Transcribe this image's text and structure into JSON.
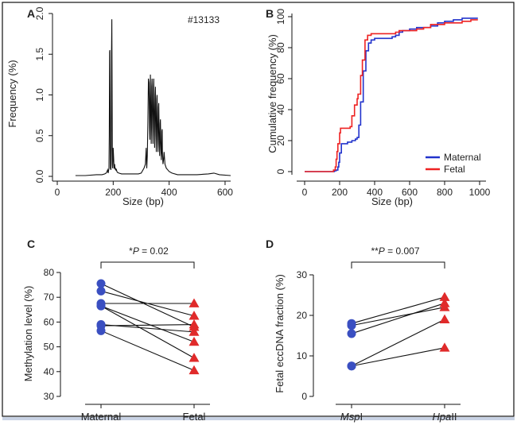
{
  "chart_data": [
    {
      "panel": "A",
      "type": "line",
      "annotation": "#13133",
      "xlabel": "Size (bp)",
      "ylabel": "Frequency (%)",
      "xlim": [
        0,
        620
      ],
      "ylim": [
        0,
        2.0
      ],
      "xticks": [
        "0",
        "200",
        "400",
        "600"
      ],
      "yticks": [
        "0.0",
        "0.5",
        "1.0",
        "1.5",
        "2.0"
      ],
      "series": [
        {
          "name": "Frequency",
          "color": "#111111",
          "x": [
            65,
            100,
            140,
            160,
            170,
            175,
            178,
            180,
            182,
            185,
            186,
            187,
            188,
            189,
            190,
            192,
            193,
            194,
            195,
            196,
            197,
            198,
            199,
            200,
            202,
            203,
            204,
            205,
            206,
            208,
            209,
            210,
            211,
            213,
            215,
            220,
            230,
            250,
            270,
            290,
            300,
            310,
            315,
            318,
            320,
            322,
            324,
            326,
            328,
            330,
            331,
            332,
            333,
            334,
            336,
            337,
            338,
            339,
            340,
            342,
            343,
            344,
            345,
            346,
            348,
            349,
            350,
            351,
            352,
            354,
            355,
            356,
            357,
            358,
            360,
            361,
            362,
            363,
            364,
            366,
            367,
            368,
            369,
            370,
            372,
            373,
            374,
            375,
            376,
            378,
            380,
            382,
            385,
            390,
            395,
            400,
            410,
            430,
            460,
            500,
            540,
            560,
            580,
            620
          ],
          "y": [
            0.01,
            0.01,
            0.02,
            0.02,
            0.03,
            0.04,
            0.06,
            0.08,
            0.04,
            0.1,
            0.5,
            1.53,
            1.55,
            0.8,
            0.1,
            0.08,
            0.4,
            1.5,
            1.93,
            1.2,
            0.15,
            0.1,
            0.2,
            0.35,
            0.2,
            0.1,
            0.1,
            0.15,
            0.12,
            0.08,
            0.1,
            0.07,
            0.09,
            0.06,
            0.05,
            0.04,
            0.03,
            0.03,
            0.03,
            0.03,
            0.04,
            0.1,
            0.15,
            0.35,
            0.1,
            0.25,
            0.65,
            1.2,
            1.15,
            0.6,
            0.45,
            0.9,
            1.25,
            1.0,
            0.4,
            0.6,
            1.1,
            1.2,
            0.95,
            0.4,
            0.55,
            1.1,
            1.2,
            0.9,
            0.35,
            0.5,
            1.0,
            1.1,
            0.8,
            0.3,
            0.45,
            0.95,
            1.0,
            0.7,
            0.3,
            0.4,
            0.85,
            0.9,
            0.6,
            0.25,
            0.35,
            0.65,
            0.7,
            0.45,
            0.2,
            0.3,
            0.55,
            0.58,
            0.3,
            0.15,
            0.2,
            0.3,
            0.15,
            0.1,
            0.08,
            0.06,
            0.04,
            0.02,
            0.02,
            0.02,
            0.03,
            0.04,
            0.02,
            0.01
          ]
        }
      ]
    },
    {
      "panel": "B",
      "type": "line",
      "xlabel": "Size (bp)",
      "ylabel": "Cumulative frequency (%)",
      "xlim": [
        -50,
        1030
      ],
      "ylim": [
        -5,
        102
      ],
      "xticks": [
        "0",
        "200",
        "400",
        "600",
        "800",
        "1000"
      ],
      "yticks": [
        "0",
        "20",
        "40",
        "60",
        "80",
        "100"
      ],
      "legend_position": "bottom-right",
      "series": [
        {
          "name": "Maternal",
          "color": "#2233cc",
          "x": [
            0,
            150,
            170,
            180,
            190,
            195,
            200,
            210,
            225,
            245,
            260,
            270,
            280,
            290,
            300,
            310,
            320,
            335,
            350,
            365,
            380,
            400,
            420,
            440,
            460,
            480,
            500,
            520,
            540,
            560,
            580,
            600,
            640,
            680,
            720,
            760,
            800,
            850,
            900,
            950,
            990
          ],
          "y": [
            0,
            0,
            0.5,
            1,
            3,
            6,
            12,
            18,
            18,
            19,
            19,
            20,
            20,
            21,
            22,
            30,
            45,
            65,
            78,
            83,
            85,
            86,
            86,
            86,
            86,
            86,
            87,
            88,
            90,
            91,
            91,
            92,
            93,
            93,
            94,
            96,
            97,
            98,
            99,
            99,
            99
          ]
        },
        {
          "name": "Fetal",
          "color": "#ee2222",
          "x": [
            0,
            150,
            165,
            175,
            180,
            185,
            190,
            200,
            205,
            240,
            260,
            270,
            285,
            300,
            305,
            320,
            330,
            345,
            360,
            380,
            400,
            440,
            470,
            500,
            520,
            540,
            560,
            600,
            640,
            680,
            720,
            760,
            800,
            820,
            850,
            900,
            950,
            990
          ],
          "y": [
            0,
            0,
            1,
            3,
            8,
            13,
            18,
            25,
            28,
            28,
            29,
            36,
            43,
            47,
            50,
            62,
            72,
            85,
            88,
            89,
            89,
            89,
            89,
            89,
            90,
            91,
            91,
            91,
            92,
            93,
            95,
            95,
            96,
            96,
            96,
            97,
            98,
            98
          ]
        }
      ]
    },
    {
      "panel": "C",
      "type": "scatter",
      "title": "*P = 0.02",
      "p_prefix": "*",
      "p_italic": "P",
      "p_value": " = 0.02",
      "xlabel": "",
      "ylabel": "Methylation level (%)",
      "categories": [
        "Maternal",
        "Fetal"
      ],
      "ylim": [
        30,
        80
      ],
      "yticks": [
        "30",
        "40",
        "50",
        "60",
        "70",
        "80"
      ],
      "pairs": [
        [
          75.5,
          58
        ],
        [
          72.5,
          62.5
        ],
        [
          67.5,
          67.5
        ],
        [
          66.5,
          45.5
        ],
        [
          59,
          56
        ],
        [
          58.5,
          59
        ],
        [
          56.5,
          40.5
        ],
        [
          66.5,
          52
        ]
      ],
      "series": [
        {
          "name": "Maternal",
          "color": "#3a4fc1",
          "marker": "circle"
        },
        {
          "name": "Fetal",
          "color": "#e02a2a",
          "marker": "triangle"
        }
      ]
    },
    {
      "panel": "D",
      "type": "scatter",
      "title": "**P = 0.007",
      "p_prefix": "**",
      "p_italic": "P",
      "p_value": " = 0.007",
      "xlabel": "",
      "ylabel": "Fetal eccDNA fraction (%)",
      "categories": [
        "MspI",
        "HpaII"
      ],
      "category_parts": [
        {
          "italic": "Msp",
          "roman": "I"
        },
        {
          "italic": "Hpa",
          "roman": "II"
        }
      ],
      "ylim": [
        0,
        30
      ],
      "yticks": [
        "0",
        "10",
        "20",
        "30"
      ],
      "pairs": [
        [
          18,
          24.5
        ],
        [
          17.5,
          22
        ],
        [
          15.5,
          23
        ],
        [
          7.5,
          12
        ],
        [
          7.5,
          19
        ]
      ],
      "series": [
        {
          "name": "MspI",
          "color": "#3a4fc1",
          "marker": "circle"
        },
        {
          "name": "HpaII",
          "color": "#e02a2a",
          "marker": "triangle"
        }
      ]
    }
  ]
}
